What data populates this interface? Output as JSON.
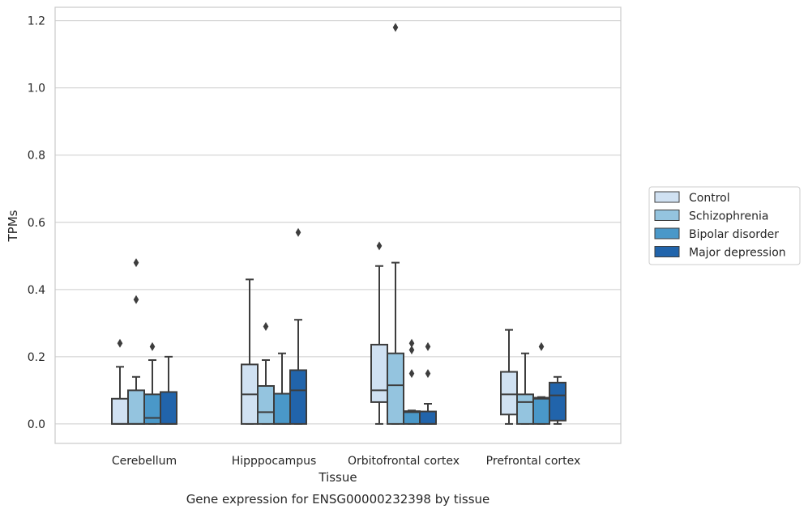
{
  "chart_data": {
    "type": "box",
    "xlabel": "Tissue",
    "ylabel": "TPMs",
    "caption": "Gene expression for ENSG00000232398 by tissue",
    "ylim": [
      -0.058,
      1.24
    ],
    "yticks": [
      "0.0",
      "0.2",
      "0.4",
      "0.6",
      "0.8",
      "1.0",
      "1.2"
    ],
    "grid": "horizontal",
    "legend_position": "right-outside",
    "categories": [
      "Cerebellum",
      "Hipppocampus",
      "Orbitofrontal cortex",
      "Prefrontal cortex"
    ],
    "series": [
      {
        "name": "Control",
        "color": "#d0e1f2",
        "boxes": [
          {
            "whisker_low": 0,
            "q1": 0,
            "median": 0,
            "q3": 0.075,
            "whisker_high": 0.17,
            "outliers": [
              0.24
            ]
          },
          {
            "whisker_low": 0,
            "q1": 0,
            "median": 0.088,
            "q3": 0.177,
            "whisker_high": 0.43,
            "outliers": []
          },
          {
            "whisker_low": 0,
            "q1": 0.065,
            "median": 0.1,
            "q3": 0.236,
            "whisker_high": 0.47,
            "outliers": [
              0.53
            ]
          },
          {
            "whisker_low": 0,
            "q1": 0.028,
            "median": 0.088,
            "q3": 0.155,
            "whisker_high": 0.28,
            "outliers": []
          }
        ]
      },
      {
        "name": "Schizophrenia",
        "color": "#94c4df",
        "boxes": [
          {
            "whisker_low": 0,
            "q1": 0,
            "median": 0,
            "q3": 0.1,
            "whisker_high": 0.14,
            "outliers": [
              0.37,
              0.48
            ]
          },
          {
            "whisker_low": 0,
            "q1": 0,
            "median": 0.035,
            "q3": 0.113,
            "whisker_high": 0.19,
            "outliers": [
              0.29
            ]
          },
          {
            "whisker_low": 0,
            "q1": 0,
            "median": 0.115,
            "q3": 0.21,
            "whisker_high": 0.48,
            "outliers": [
              1.18
            ]
          },
          {
            "whisker_low": 0,
            "q1": 0,
            "median": 0.065,
            "q3": 0.088,
            "whisker_high": 0.21,
            "outliers": []
          }
        ]
      },
      {
        "name": "Bipolar disorder",
        "color": "#4a98c9",
        "boxes": [
          {
            "whisker_low": 0,
            "q1": 0,
            "median": 0.018,
            "q3": 0.088,
            "whisker_high": 0.19,
            "outliers": [
              0.23
            ]
          },
          {
            "whisker_low": 0,
            "q1": 0,
            "median": 0,
            "q3": 0.09,
            "whisker_high": 0.21,
            "outliers": []
          },
          {
            "whisker_low": 0,
            "q1": 0,
            "median": 0.035,
            "q3": 0.038,
            "whisker_high": 0.04,
            "outliers": [
              0.15,
              0.22,
              0.24
            ]
          },
          {
            "whisker_low": 0,
            "q1": 0,
            "median": 0.075,
            "q3": 0.078,
            "whisker_high": 0.08,
            "outliers": [
              0.23
            ]
          }
        ]
      },
      {
        "name": "Major depression",
        "color": "#2164ab",
        "boxes": [
          {
            "whisker_low": 0,
            "q1": 0,
            "median": 0,
            "q3": 0.095,
            "whisker_high": 0.2,
            "outliers": []
          },
          {
            "whisker_low": 0,
            "q1": 0,
            "median": 0.1,
            "q3": 0.16,
            "whisker_high": 0.31,
            "outliers": [
              0.57
            ]
          },
          {
            "whisker_low": 0,
            "q1": 0,
            "median": 0,
            "q3": 0.037,
            "whisker_high": 0.06,
            "outliers": [
              0.15,
              0.23
            ]
          },
          {
            "whisker_low": 0,
            "q1": 0.01,
            "median": 0.085,
            "q3": 0.123,
            "whisker_high": 0.14,
            "outliers": []
          }
        ]
      }
    ]
  }
}
